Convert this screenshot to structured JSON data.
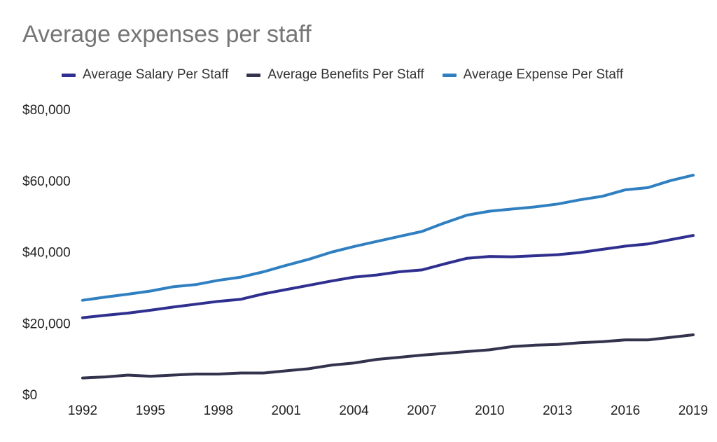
{
  "chart_data": {
    "type": "line",
    "title": "Average expenses per staff",
    "xlabel": "",
    "ylabel": "",
    "x": [
      1992,
      1993,
      1994,
      1995,
      1996,
      1997,
      1998,
      1999,
      2000,
      2001,
      2002,
      2003,
      2004,
      2005,
      2006,
      2007,
      2008,
      2009,
      2010,
      2011,
      2012,
      2013,
      2014,
      2015,
      2016,
      2017,
      2018,
      2019
    ],
    "x_ticks": [
      "1992",
      "1995",
      "1998",
      "2001",
      "2004",
      "2007",
      "2010",
      "2013",
      "2016",
      "2019"
    ],
    "y_ticks": [
      "$0",
      "$20,000",
      "$40,000",
      "$60,000",
      "$80,000"
    ],
    "ylim": [
      0,
      80000
    ],
    "xlim": [
      1992,
      2019
    ],
    "legend_position": "top",
    "grid": false,
    "series": [
      {
        "name": "Average Salary Per Staff",
        "color": "#2f2f8f",
        "values": [
          21500,
          22200,
          22800,
          23600,
          24500,
          25300,
          26100,
          26700,
          28200,
          29400,
          30600,
          31800,
          32900,
          33500,
          34400,
          34900,
          36600,
          38200,
          38700,
          38600,
          38900,
          39200,
          39800,
          40700,
          41600,
          42200,
          43400,
          44600
        ]
      },
      {
        "name": "Average Benefits Per Staff",
        "color": "#33334d",
        "values": [
          4600,
          4900,
          5400,
          5100,
          5400,
          5700,
          5700,
          6000,
          6000,
          6600,
          7200,
          8200,
          8800,
          9800,
          10400,
          11000,
          11500,
          12000,
          12500,
          13400,
          13800,
          14000,
          14500,
          14800,
          15300,
          15300,
          16000,
          16700
        ]
      },
      {
        "name": "Average Expense Per Staff",
        "color": "#2f7fc1",
        "values": [
          26400,
          27300,
          28100,
          29000,
          30200,
          30800,
          32000,
          32900,
          34400,
          36200,
          37900,
          39900,
          41500,
          42900,
          44300,
          45700,
          48100,
          50300,
          51400,
          52000,
          52600,
          53400,
          54600,
          55600,
          57400,
          58000,
          60000,
          61500
        ]
      }
    ]
  }
}
